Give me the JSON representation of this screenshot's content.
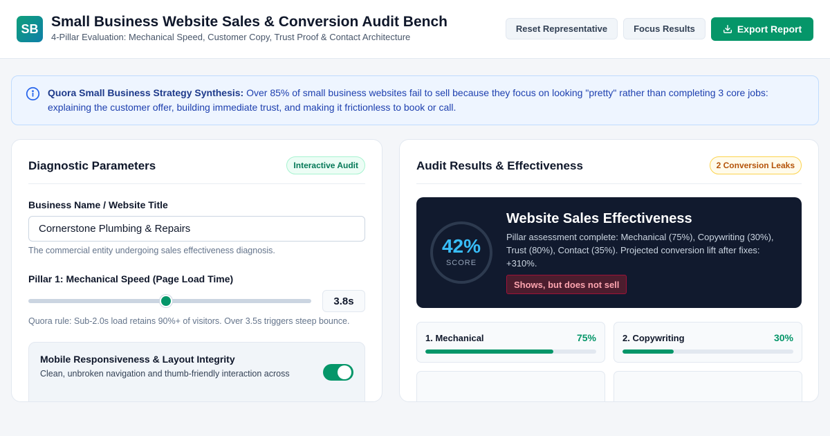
{
  "header": {
    "logo": "SB",
    "title": "Small Business Website Sales & Conversion Audit Bench",
    "subtitle": "4-Pillar Evaluation: Mechanical Speed, Customer Copy, Trust Proof & Contact Architecture",
    "reset_label": "Reset Representative",
    "focus_label": "Focus Results",
    "export_label": "Export Report",
    "export_icon": "download-icon"
  },
  "banner": {
    "icon": "info-icon",
    "lead": "Quora Small Business Strategy Synthesis:",
    "text": " Over 85% of small business websites fail to sell because they focus on looking \"pretty\" rather than completing 3 core jobs: explaining the customer offer, building immediate trust, and making it frictionless to book or call."
  },
  "diagnostics": {
    "title": "Diagnostic Parameters",
    "badge": "Interactive Audit",
    "business_label": "Business Name / Website Title",
    "business_value": "Cornerstone Plumbing & Repairs",
    "business_hint": "The commercial entity undergoing sales effectiveness diagnosis.",
    "speed_label": "Pillar 1: Mechanical Speed (Page Load Time)",
    "speed_value": "3.8s",
    "speed_hint": "Quora rule: Sub-2.0s load retains 90%+ of visitors. Over 3.5s triggers steep bounce.",
    "mobile_title": "Mobile Responsiveness & Layout Integrity",
    "mobile_desc": "Clean, unbroken navigation and thumb-friendly interaction across",
    "mobile_enabled": true
  },
  "results": {
    "title": "Audit Results & Effectiveness",
    "badge": "2 Conversion Leaks",
    "score_value": "42%",
    "score_label": "SCORE",
    "score_title": "Website Sales Effectiveness",
    "score_desc": "Pillar assessment complete: Mechanical (75%), Copywriting (30%), Trust (80%), Contact (35%). Projected conversion lift after fixes: +310%.",
    "verdict": "Shows, but does not sell",
    "pillars": [
      {
        "name": "1. Mechanical",
        "pct": "75%",
        "value": 75
      },
      {
        "name": "2. Copywriting",
        "pct": "30%",
        "value": 30
      }
    ]
  },
  "colors": {
    "accent": "#059669",
    "score": "#38bdf8",
    "dark_panel": "#111a2e",
    "verdict": "#fda4af",
    "leak_badge": "#b45309"
  }
}
